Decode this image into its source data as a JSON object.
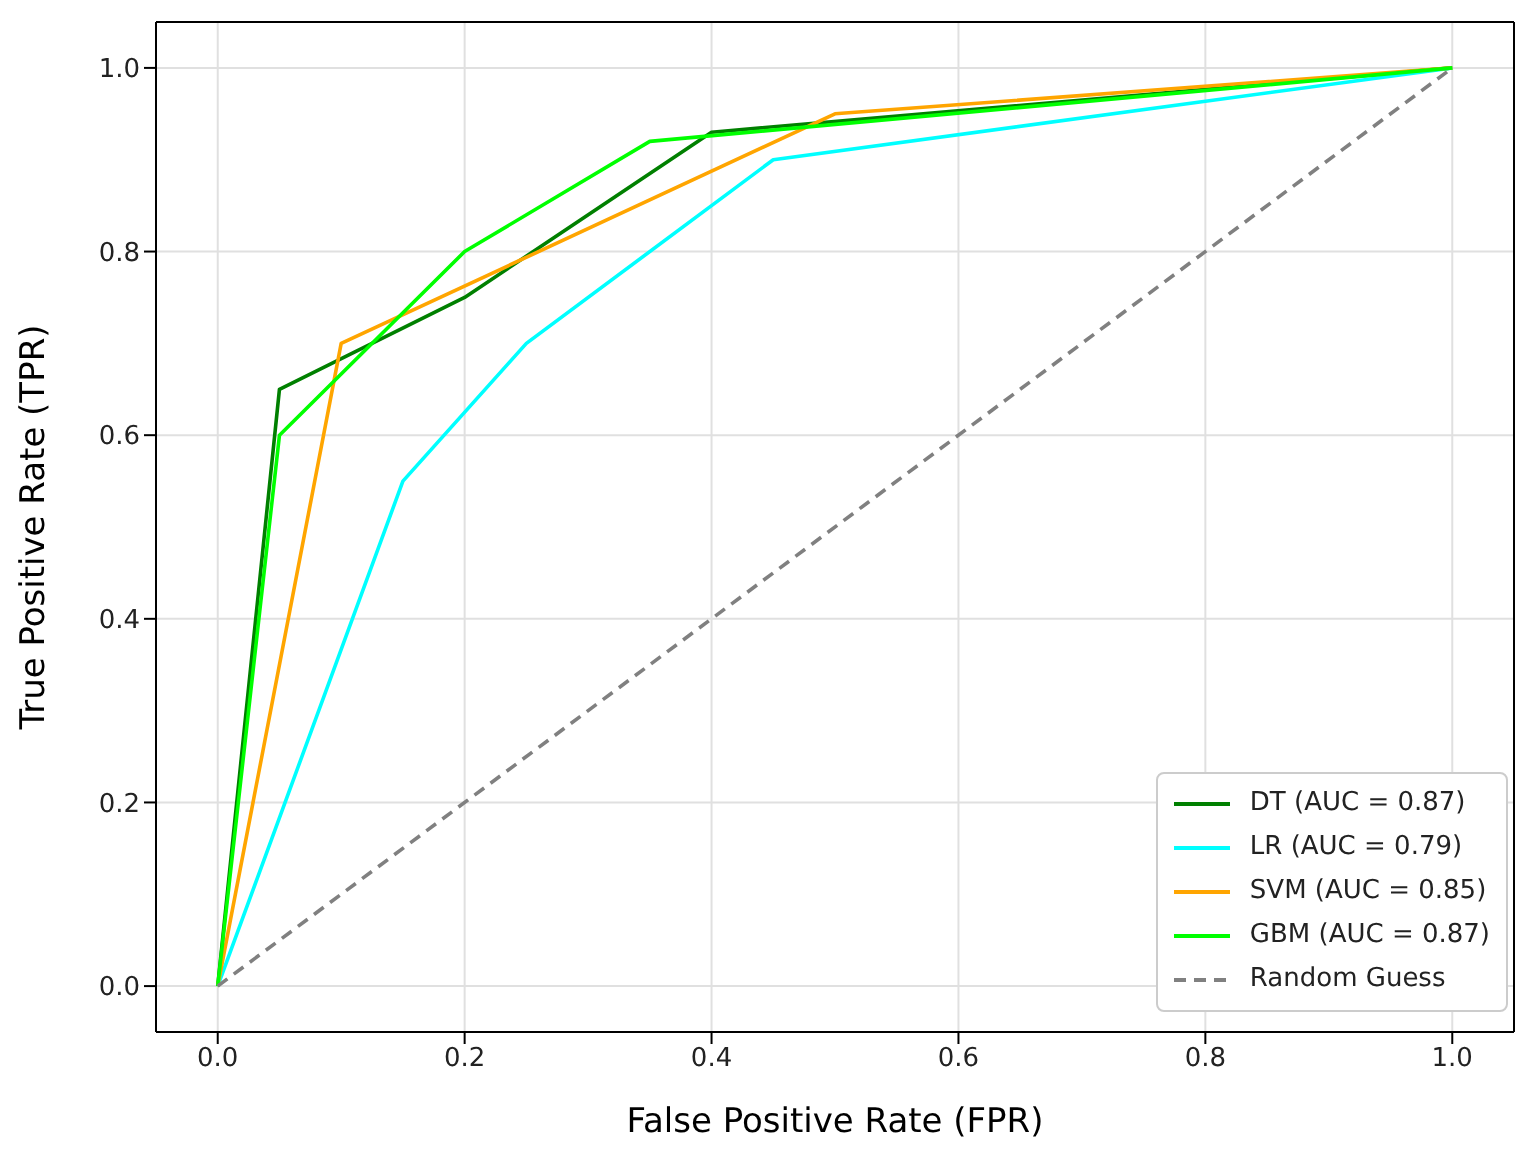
{
  "chart_data": {
    "type": "line",
    "xlabel": "False Positive Rate (FPR)",
    "ylabel": "True Positive Rate (TPR)",
    "xlim": [
      -0.05,
      1.05
    ],
    "ylim": [
      -0.05,
      1.05
    ],
    "xticks": [
      {
        "value": 0,
        "label": "0.0"
      },
      0.2,
      0.4,
      0.6,
      0.8,
      {
        "value": 1,
        "label": "1.0"
      }
    ],
    "yticks": [
      {
        "value": 0,
        "label": "0.0"
      },
      0.2,
      0.4,
      0.6,
      0.8,
      {
        "value": 1,
        "label": "1.0"
      }
    ],
    "grid": true,
    "legend": "bottom right",
    "series": [
      {
        "name": "DT (AUC = 0.87)",
        "color": "#008000",
        "x": [
          0,
          0.05,
          0.2,
          0.4,
          1
        ],
        "values": [
          0,
          0.65,
          0.75,
          0.93,
          1
        ]
      },
      {
        "name": "LR (AUC = 0.79)",
        "color": "#00ffff",
        "x": [
          0,
          0.15,
          0.25,
          0.45,
          1
        ],
        "values": [
          0,
          0.55,
          0.7,
          0.9,
          1
        ]
      },
      {
        "name": "SVM (AUC = 0.85)",
        "color": "#ffa500",
        "x": [
          0,
          0.1,
          0.5,
          1
        ],
        "values": [
          0,
          0.7,
          0.95,
          1
        ]
      },
      {
        "name": "GBM (AUC = 0.87)",
        "color": "#00ff00",
        "x": [
          0,
          0.05,
          0.2,
          0.35,
          1
        ],
        "values": [
          0,
          0.6,
          0.8,
          0.92,
          1
        ]
      },
      {
        "name": "Random Guess",
        "color": "#808080",
        "line_style": "dashed",
        "x": [
          0,
          1
        ],
        "values": [
          0,
          1
        ]
      }
    ]
  }
}
